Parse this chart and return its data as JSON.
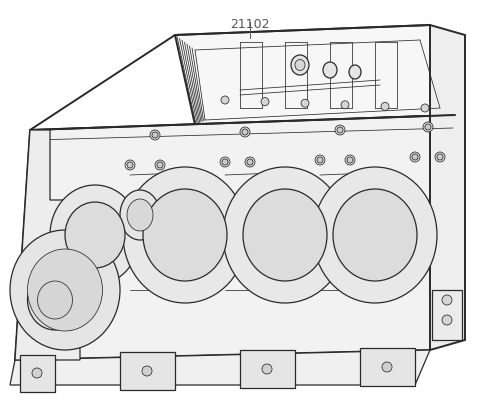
{
  "background_color": "#ffffff",
  "line_color": "#2a2a2a",
  "label_text": "21102",
  "label_fontsize": 9,
  "label_color": "#555555",
  "fig_width": 4.8,
  "fig_height": 4.0,
  "dpi": 100,
  "lw_outer": 1.4,
  "lw_mid": 0.9,
  "lw_thin": 0.55,
  "engine_color": "#f7f7f7",
  "engine_color2": "#f2f2f2",
  "engine_color3": "#eeeeee"
}
